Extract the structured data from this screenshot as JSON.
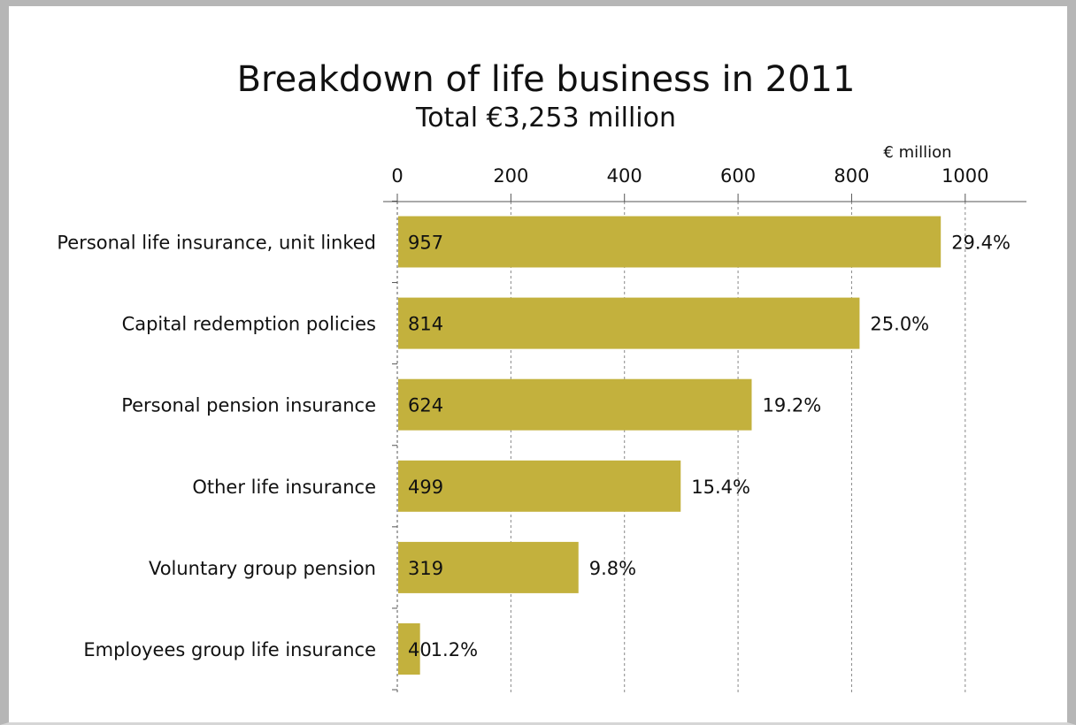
{
  "chart_data": {
    "type": "bar",
    "orientation": "horizontal",
    "title": "Breakdown of life business in 2011",
    "subtitle": "Total €3,253 million",
    "unit_label": "€ million",
    "x_axis": {
      "ticks": [
        0,
        200,
        400,
        600,
        800,
        1000
      ],
      "tick_labels": [
        "0",
        "200",
        "400",
        "600",
        "800",
        "1000"
      ],
      "range": [
        0,
        1100
      ],
      "position": "top",
      "grid": true
    },
    "categories": [
      "Personal life insurance, unit linked",
      "Capital redemption policies",
      "Personal pension insurance",
      "Other life insurance",
      "Voluntary group pension",
      "Employees group life insurance"
    ],
    "values": [
      957,
      814,
      624,
      499,
      319,
      40
    ],
    "value_labels": [
      "957",
      "814",
      "624",
      "499",
      "319",
      "40"
    ],
    "percent_labels": [
      "29.4%",
      "25.0%",
      "19.2%",
      "15.4%",
      "9.8%",
      "1.2%"
    ],
    "legend": "none"
  },
  "colors": {
    "bar": "#c3b13d",
    "grid": "#888888",
    "axis": "#555555",
    "frame": "#b6b6b6"
  }
}
